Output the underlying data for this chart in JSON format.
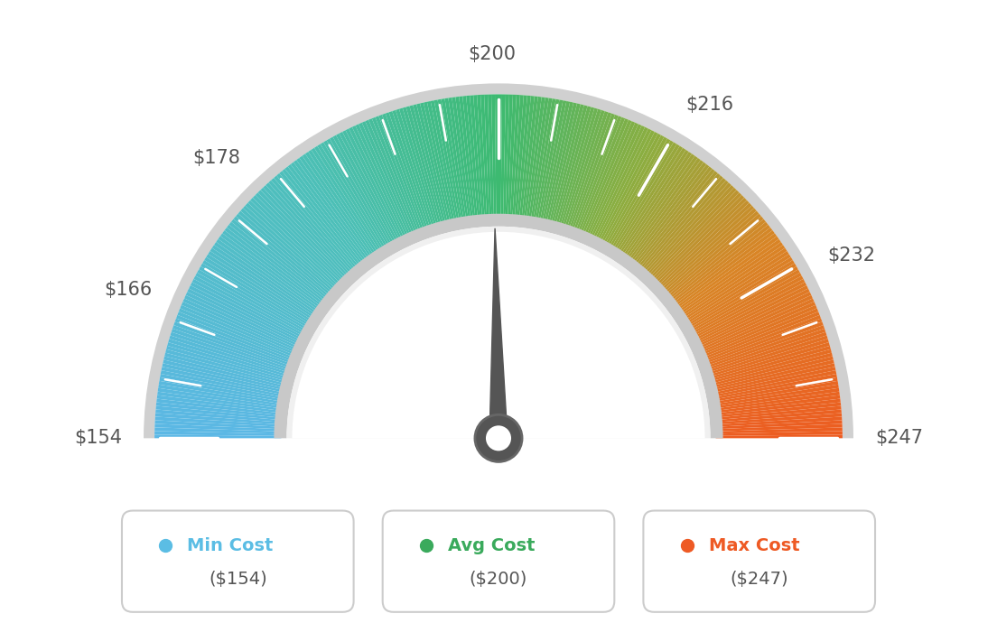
{
  "min_val": 154,
  "max_val": 247,
  "avg_val": 200,
  "needle_value": 200,
  "background_color": "#ffffff",
  "tick_labels": [
    {
      "value": 154,
      "label": "$154",
      "ha": "right",
      "va": "center",
      "offset_r": 0.09
    },
    {
      "value": 166,
      "label": "$166",
      "ha": "right",
      "va": "center",
      "offset_r": 0.09
    },
    {
      "value": 178,
      "label": "$178",
      "ha": "right",
      "va": "bottom",
      "offset_r": 0.085
    },
    {
      "value": 200,
      "label": "$200",
      "ha": "center",
      "va": "bottom",
      "offset_r": 0.085
    },
    {
      "value": 216,
      "label": "$216",
      "ha": "left",
      "va": "bottom",
      "offset_r": 0.085
    },
    {
      "value": 232,
      "label": "$232",
      "ha": "left",
      "va": "center",
      "offset_r": 0.09
    },
    {
      "value": 247,
      "label": "$247",
      "ha": "left",
      "va": "center",
      "offset_r": 0.09
    }
  ],
  "legend": [
    {
      "label": "Min Cost",
      "sublabel": "($154)",
      "color": "#5bbde4"
    },
    {
      "label": "Avg Cost",
      "sublabel": "($200)",
      "color": "#3aaa5c"
    },
    {
      "label": "Max Cost",
      "sublabel": "($247)",
      "color": "#ee5a24"
    }
  ],
  "color_stops": [
    [
      0.0,
      [
        0.36,
        0.72,
        0.9
      ]
    ],
    [
      0.3,
      [
        0.3,
        0.75,
        0.72
      ]
    ],
    [
      0.5,
      [
        0.24,
        0.73,
        0.44
      ]
    ],
    [
      0.65,
      [
        0.55,
        0.68,
        0.25
      ]
    ],
    [
      0.8,
      [
        0.85,
        0.52,
        0.15
      ]
    ],
    [
      1.0,
      [
        0.93,
        0.36,
        0.13
      ]
    ]
  ]
}
